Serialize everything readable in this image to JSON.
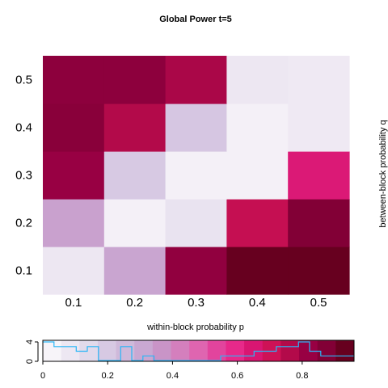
{
  "chart_data": {
    "type": "heatmap",
    "title": "Global Power t=5",
    "xlabel": "within-block probability p",
    "ylabel": "between-block probability q",
    "x": [
      0.1,
      0.2,
      0.3,
      0.4,
      0.5
    ],
    "y": [
      0.1,
      0.2,
      0.3,
      0.4,
      0.5
    ],
    "x_ticks": [
      "0.1",
      "0.2",
      "0.3",
      "0.4",
      "0.5"
    ],
    "y_ticks": [
      "0.1",
      "0.2",
      "0.3",
      "0.4",
      "0.5"
    ],
    "values": [
      [
        0.06,
        0.31,
        0.86,
        0.96,
        0.96
      ],
      [
        0.32,
        0.02,
        0.08,
        0.74,
        0.9
      ],
      [
        0.84,
        0.18,
        0.02,
        0.02,
        0.65
      ],
      [
        0.88,
        0.78,
        0.19,
        0.02,
        0.05
      ],
      [
        0.87,
        0.87,
        0.8,
        0.06,
        0.05
      ]
    ],
    "colorbar": {
      "ticks": [
        "0",
        "0.2",
        "0.4",
        "0.6",
        "0.8"
      ],
      "range": [
        0,
        0.96
      ],
      "colors": [
        "#f7f4f9",
        "#ede7f2",
        "#e2daeb",
        "#d7c9e3",
        "#cfb9da",
        "#c9a8d2",
        "#c994c7",
        "#d47fbd",
        "#df65b0",
        "#e2449d",
        "#e7298a",
        "#d91672",
        "#ce1256",
        "#b30a4a",
        "#980043",
        "#820036",
        "#67001f"
      ],
      "histogram_max_label": "4",
      "histogram_zero_label": "0",
      "histogram": [
        4,
        3,
        3,
        2,
        3,
        0,
        0,
        3,
        0,
        1,
        0,
        0,
        0,
        0,
        0,
        0,
        1,
        1,
        1,
        2,
        2,
        3,
        3,
        4,
        2,
        1,
        1,
        1
      ]
    },
    "colors": {
      "histogram_line": "#29b6f6"
    }
  }
}
